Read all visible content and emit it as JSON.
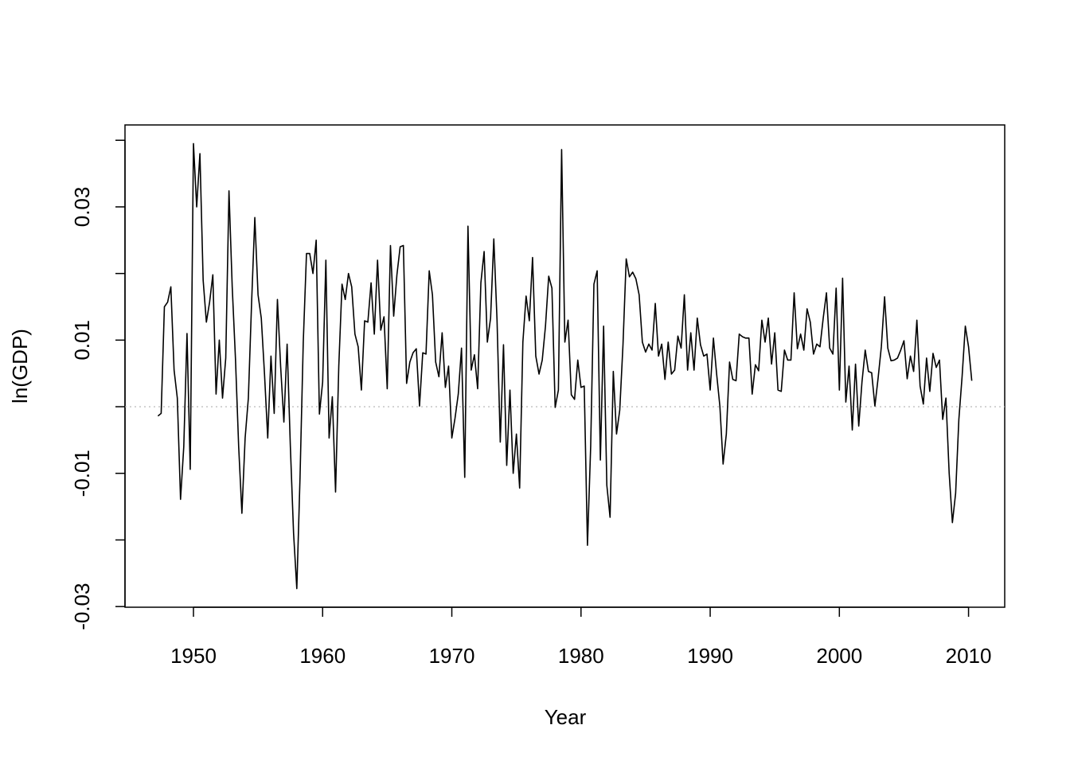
{
  "chart_data": {
    "type": "line",
    "xlabel": "Year",
    "ylabel": "ln(GDP)",
    "xlim": [
      1944.7,
      2012.8
    ],
    "ylim": [
      -0.0301,
      0.0423
    ],
    "xticks": [
      1950,
      1960,
      1970,
      1980,
      1990,
      2000,
      2010
    ],
    "yticks": [
      -0.03,
      -0.01,
      0.01,
      0.03
    ],
    "yticks_unlabeled": [
      -0.02,
      0,
      0.02,
      0.04
    ],
    "hline": 0,
    "hline_color": "#b0b0b0",
    "x": [
      1947.25,
      1947.5,
      1947.75,
      1948,
      1948.25,
      1948.5,
      1948.75,
      1949,
      1949.25,
      1949.5,
      1949.75,
      1950,
      1950.25,
      1950.5,
      1950.75,
      1951,
      1951.25,
      1951.5,
      1951.75,
      1952,
      1952.25,
      1952.5,
      1952.75,
      1953,
      1953.25,
      1953.5,
      1953.75,
      1954,
      1954.25,
      1954.5,
      1954.75,
      1955,
      1955.25,
      1955.5,
      1955.75,
      1956,
      1956.25,
      1956.5,
      1956.75,
      1957,
      1957.25,
      1957.5,
      1957.75,
      1958,
      1958.25,
      1958.5,
      1958.75,
      1959,
      1959.25,
      1959.5,
      1959.75,
      1960,
      1960.25,
      1960.5,
      1960.75,
      1961,
      1961.25,
      1961.5,
      1961.75,
      1962,
      1962.25,
      1962.5,
      1962.75,
      1963,
      1963.25,
      1963.5,
      1963.75,
      1964,
      1964.25,
      1964.5,
      1964.75,
      1965,
      1965.25,
      1965.5,
      1965.75,
      1966,
      1966.25,
      1966.5,
      1966.75,
      1967,
      1967.25,
      1967.5,
      1967.75,
      1968,
      1968.25,
      1968.5,
      1968.75,
      1969,
      1969.25,
      1969.5,
      1969.75,
      1970,
      1970.25,
      1970.5,
      1970.75,
      1971,
      1971.25,
      1971.5,
      1971.75,
      1972,
      1972.25,
      1972.5,
      1972.75,
      1973,
      1973.25,
      1973.5,
      1973.75,
      1974,
      1974.25,
      1974.5,
      1974.75,
      1975,
      1975.25,
      1975.5,
      1975.75,
      1976,
      1976.25,
      1976.5,
      1976.75,
      1977,
      1977.25,
      1977.5,
      1977.75,
      1978,
      1978.25,
      1978.5,
      1978.75,
      1979,
      1979.25,
      1979.5,
      1979.75,
      1980,
      1980.25,
      1980.5,
      1980.75,
      1981,
      1981.25,
      1981.5,
      1981.75,
      1982,
      1982.25,
      1982.5,
      1982.75,
      1983,
      1983.25,
      1983.5,
      1983.75,
      1984,
      1984.25,
      1984.5,
      1984.75,
      1985,
      1985.25,
      1985.5,
      1985.75,
      1986,
      1986.25,
      1986.5,
      1986.75,
      1987,
      1987.25,
      1987.5,
      1987.75,
      1988,
      1988.25,
      1988.5,
      1988.75,
      1989,
      1989.25,
      1989.5,
      1989.75,
      1990,
      1990.25,
      1990.5,
      1990.75,
      1991,
      1991.25,
      1991.5,
      1991.75,
      1992,
      1992.25,
      1992.5,
      1992.75,
      1993,
      1993.25,
      1993.5,
      1993.75,
      1994,
      1994.25,
      1994.5,
      1994.75,
      1995,
      1995.25,
      1995.5,
      1995.75,
      1996,
      1996.25,
      1996.5,
      1996.75,
      1997,
      1997.25,
      1997.5,
      1997.75,
      1998,
      1998.25,
      1998.5,
      1998.75,
      1999,
      1999.25,
      1999.5,
      1999.75,
      2000,
      2000.25,
      2000.5,
      2000.75,
      2001,
      2001.25,
      2001.5,
      2001.75,
      2002,
      2002.25,
      2002.5,
      2002.75,
      2003,
      2003.25,
      2003.5,
      2003.75,
      2004,
      2004.25,
      2004.5,
      2004.75,
      2005,
      2005.25,
      2005.5,
      2005.75,
      2006,
      2006.25,
      2006.5,
      2006.75,
      2007,
      2007.25,
      2007.5,
      2007.75,
      2008,
      2008.25,
      2008.5,
      2008.75,
      2009,
      2009.25,
      2009.5,
      2009.75,
      2010,
      2010.25
    ],
    "series": [
      {
        "color": "#000000",
        "values": [
          -0.0014,
          -0.001,
          0.015,
          0.0157,
          0.018,
          0.0055,
          0.0013,
          -0.0139,
          -0.006,
          0.011,
          -0.0094,
          0.0395,
          0.03,
          0.038,
          0.019,
          0.0127,
          0.0157,
          0.0198,
          0.0019,
          0.01,
          0.0013,
          0.0073,
          0.0324,
          0.018,
          0.0073,
          -0.006,
          -0.016,
          -0.0047,
          0.0013,
          0.0156,
          0.0284,
          0.0168,
          0.0133,
          0.0049,
          -0.0047,
          0.0076,
          -0.001,
          0.0161,
          0.006,
          -0.0023,
          0.0094,
          -0.0059,
          -0.019,
          -0.0273,
          -0.0106,
          0.0097,
          0.023,
          0.023,
          0.02,
          0.025,
          -0.0011,
          0.0037,
          0.022,
          -0.0047,
          0.0015,
          -0.0128,
          0.0061,
          0.0184,
          0.0161,
          0.02,
          0.018,
          0.0109,
          0.009,
          0.0025,
          0.0129,
          0.0127,
          0.0186,
          0.0109,
          0.022,
          0.0115,
          0.0135,
          0.0027,
          0.0242,
          0.0136,
          0.0198,
          0.024,
          0.0242,
          0.0035,
          0.0067,
          0.0081,
          0.0087,
          0.0001,
          0.0081,
          0.0079,
          0.0204,
          0.0168,
          0.0067,
          0.0045,
          0.0111,
          0.0029,
          0.0061,
          -0.0047,
          -0.0017,
          0.0019,
          0.0088,
          -0.0106,
          0.0271,
          0.0055,
          0.0078,
          0.0027,
          0.0186,
          0.0233,
          0.0097,
          0.0133,
          0.0252,
          0.013,
          -0.0053,
          0.0093,
          -0.0088,
          0.0025,
          -0.01,
          -0.0041,
          -0.0122,
          0.0097,
          0.0166,
          0.0129,
          0.0224,
          0.0076,
          0.0049,
          0.007,
          0.0121,
          0.0196,
          0.0178,
          -0.0001,
          0.0025,
          0.0386,
          0.0097,
          0.013,
          0.0018,
          0.0011,
          0.007,
          0.0029,
          0.0031,
          -0.0208,
          -0.0059,
          0.0184,
          0.0204,
          -0.008,
          0.0121,
          -0.0118,
          -0.0166,
          0.0053,
          -0.0041,
          -0.0005,
          0.0093,
          0.0222,
          0.0195,
          0.0202,
          0.0192,
          0.0168,
          0.0097,
          0.0082,
          0.0094,
          0.0085,
          0.0155,
          0.0076,
          0.0094,
          0.0041,
          0.0097,
          0.0049,
          0.0055,
          0.0106,
          0.0088,
          0.0168,
          0.0055,
          0.0111,
          0.0055,
          0.0133,
          0.0093,
          0.0076,
          0.0079,
          0.0025,
          0.0103,
          0.0049,
          0.0001,
          -0.0086,
          -0.0041,
          0.0067,
          0.0041,
          0.0039,
          0.0109,
          0.0105,
          0.0103,
          0.0103,
          0.0019,
          0.0063,
          0.0054,
          0.013,
          0.0097,
          0.0133,
          0.0064,
          0.0111,
          0.0025,
          0.0023,
          0.0085,
          0.007,
          0.007,
          0.0171,
          0.0087,
          0.0109,
          0.0085,
          0.0147,
          0.0127,
          0.0079,
          0.0094,
          0.009,
          0.0133,
          0.0171,
          0.0088,
          0.0079,
          0.0178,
          0.0025,
          0.0193,
          0.0007,
          0.0061,
          -0.0035,
          0.0064,
          -0.0029,
          0.0037,
          0.0085,
          0.0053,
          0.0051,
          0.0001,
          0.0043,
          0.009,
          0.0165,
          0.0088,
          0.0069,
          0.007,
          0.0073,
          0.0085,
          0.0099,
          0.0042,
          0.0076,
          0.0053,
          0.013,
          0.0031,
          0.0004,
          0.0073,
          0.0023,
          0.008,
          0.0059,
          0.007,
          -0.0019,
          0.0013,
          -0.01,
          -0.0174,
          -0.013,
          -0.0019,
          0.0045,
          0.0121,
          0.009,
          0.0039
        ]
      }
    ]
  }
}
